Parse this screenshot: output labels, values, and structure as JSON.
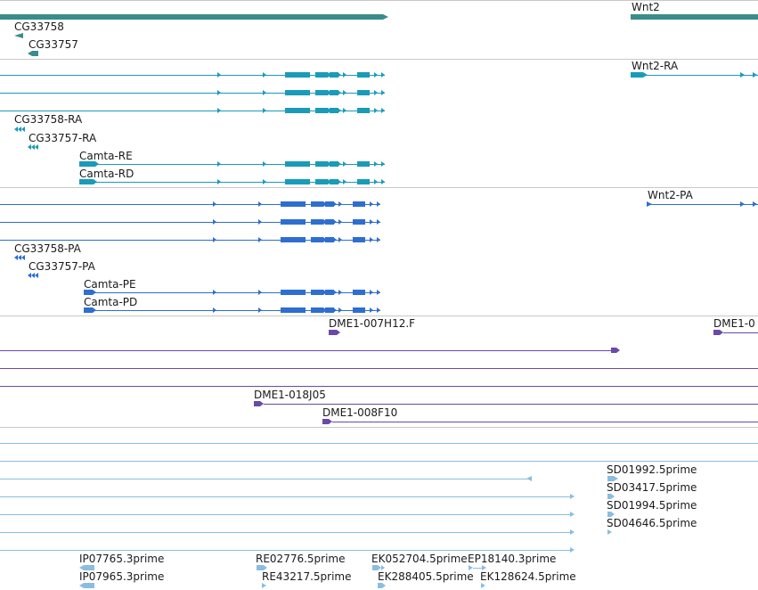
{
  "colors": {
    "gene": "#3a8c8c",
    "transcript": "#1a9bb8",
    "protein": "#2f6ed1",
    "clone": "#6a4aa8",
    "est": "#8bbde0"
  },
  "tracks": [
    {
      "id": "gene",
      "items": [
        {
          "label": "",
          "row": 0,
          "arrows": false
        },
        {
          "label": "Wnt2",
          "row": 0
        },
        {
          "label": "CG33758",
          "row": 1
        },
        {
          "label": "CG33757",
          "row": 2
        }
      ]
    },
    {
      "id": "transcript",
      "items": [
        {
          "label": "Wnt2-RA"
        },
        {
          "label": "CG33758-RA"
        },
        {
          "label": "CG33757-RA"
        },
        {
          "label": "Camta-RE"
        },
        {
          "label": "Camta-RD"
        }
      ]
    },
    {
      "id": "protein",
      "items": [
        {
          "label": "Wnt2-PA"
        },
        {
          "label": "CG33758-PA"
        },
        {
          "label": "CG33757-PA"
        },
        {
          "label": "Camta-PE"
        },
        {
          "label": "Camta-PD"
        }
      ]
    },
    {
      "id": "clone",
      "items": [
        {
          "label": "DME1-007H12.F"
        },
        {
          "label": "DME1-0"
        },
        {
          "label": "DME1-018J05"
        },
        {
          "label": "DME1-008F10"
        }
      ]
    },
    {
      "id": "est",
      "items": [
        {
          "label": "SD01992.5prime"
        },
        {
          "label": "SD03417.5prime"
        },
        {
          "label": "SD01994.5prime"
        },
        {
          "label": "SD04646.5prime"
        },
        {
          "label": "IP07765.3prime"
        },
        {
          "label": "IP07965.3prime"
        },
        {
          "label": "RE02776.5prime"
        },
        {
          "label": "RE43217.5prime"
        },
        {
          "label": "EK052704.5prime"
        },
        {
          "label": "EK288405.5prime"
        },
        {
          "label": "EP18140.3prime"
        },
        {
          "label": "EK128624.5prime"
        }
      ]
    }
  ]
}
